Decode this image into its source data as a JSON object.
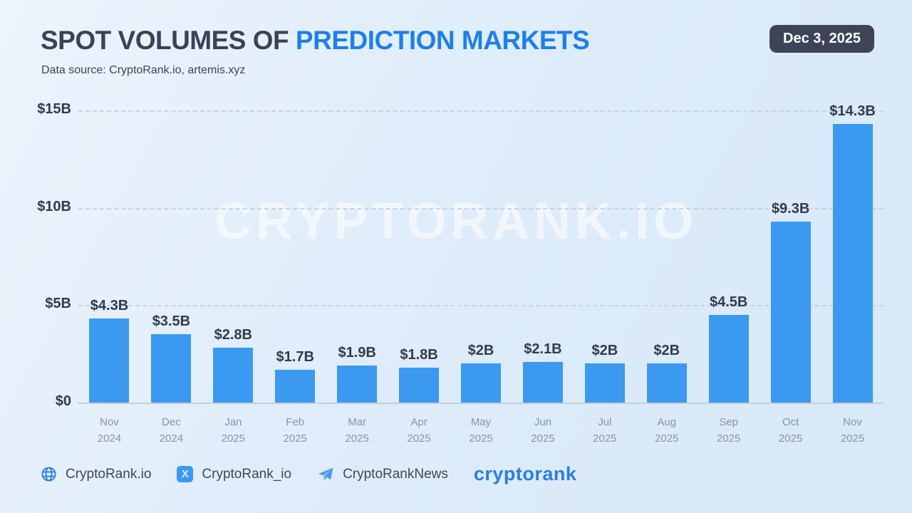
{
  "header": {
    "title_dark": "SPOT VOLUMES OF ",
    "title_accent": "PREDICTION MARKETS",
    "subtitle": "Data source: CryptoRank.io, artemis.xyz",
    "date_badge": "Dec 3, 2025"
  },
  "watermark": "CRYPTORANK.IO",
  "chart_data": {
    "type": "bar",
    "title": "Spot Volumes of Prediction Markets",
    "categories": [
      "Nov 2024",
      "Dec 2024",
      "Jan 2025",
      "Feb 2025",
      "Mar 2025",
      "Apr 2025",
      "May 2025",
      "Jun 2025",
      "Jul 2025",
      "Aug 2025",
      "Sep 2025",
      "Oct 2025",
      "Nov 2025"
    ],
    "months": [
      "Nov",
      "Dec",
      "Jan",
      "Feb",
      "Mar",
      "Apr",
      "May",
      "Jun",
      "Jul",
      "Aug",
      "Sep",
      "Oct",
      "Nov"
    ],
    "years": [
      "2024",
      "2024",
      "2025",
      "2025",
      "2025",
      "2025",
      "2025",
      "2025",
      "2025",
      "2025",
      "2025",
      "2025",
      "2025"
    ],
    "values": [
      4.3,
      3.5,
      2.8,
      1.7,
      1.9,
      1.8,
      2,
      2.1,
      2,
      2,
      4.5,
      9.3,
      14.3
    ],
    "value_labels": [
      "$4.3B",
      "$3.5B",
      "$2.8B",
      "$1.7B",
      "$1.9B",
      "$1.8B",
      "$2B",
      "$2.1B",
      "$2B",
      "$2B",
      "$4.5B",
      "$9.3B",
      "$14.3B"
    ],
    "unit": "billion USD",
    "ylim": [
      0,
      15
    ],
    "yticks": [
      {
        "value": 0,
        "label": "$0"
      },
      {
        "value": 5,
        "label": "$5B"
      },
      {
        "value": 10,
        "label": "$10B"
      },
      {
        "value": 15,
        "label": "$15B"
      }
    ],
    "grid": true,
    "legend": false,
    "bar_color": "#3b99f0",
    "accent_color": "#1f7fe8",
    "badge_bg_color": "#3d4457"
  },
  "footer": {
    "items": [
      {
        "icon": "globe-icon",
        "label": "CryptoRank.io"
      },
      {
        "icon": "x-icon",
        "label": "CryptoRank_io"
      },
      {
        "icon": "telegram-icon",
        "label": "CryptoRankNews"
      }
    ],
    "x_icon_glyph": "X",
    "logo_text": "cryptorank"
  }
}
